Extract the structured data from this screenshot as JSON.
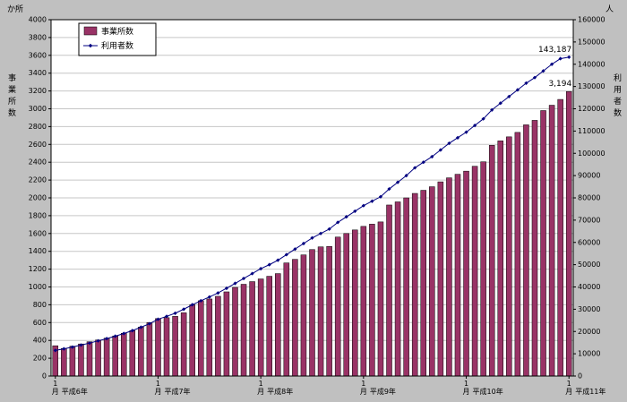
{
  "chart_data": {
    "type": "bar",
    "title": "",
    "left_axis": {
      "unit": "か所",
      "title": "事業所数",
      "min": 0,
      "max": 4000,
      "step": 200
    },
    "right_axis": {
      "unit": "人",
      "title": "利用者数",
      "min": 0,
      "max": 160000,
      "step": 10000
    },
    "x_ticks": [
      {
        "index": 0,
        "month": "1月",
        "year": "平成6年"
      },
      {
        "index": 12,
        "month": "1月",
        "year": "平成7年"
      },
      {
        "index": 24,
        "month": "1月",
        "year": "平成8年"
      },
      {
        "index": 36,
        "month": "1月",
        "year": "平成9年"
      },
      {
        "index": 48,
        "month": "1月",
        "year": "平成10年"
      },
      {
        "index": 60,
        "month": "1月",
        "year": "平成11年"
      }
    ],
    "series": [
      {
        "name": "事業所数",
        "type": "bar",
        "axis": "left",
        "color": "#993366",
        "values": [
          340,
          310,
          335,
          360,
          385,
          405,
          425,
          450,
          480,
          510,
          550,
          600,
          645,
          655,
          670,
          710,
          800,
          845,
          865,
          895,
          945,
          995,
          1030,
          1060,
          1090,
          1120,
          1150,
          1270,
          1310,
          1360,
          1420,
          1450,
          1455,
          1560,
          1600,
          1640,
          1680,
          1705,
          1730,
          1920,
          1955,
          2000,
          2050,
          2085,
          2125,
          2180,
          2225,
          2265,
          2300,
          2355,
          2405,
          2590,
          2640,
          2685,
          2735,
          2820,
          2870,
          2980,
          3040,
          3105,
          3194
        ]
      },
      {
        "name": "利用者数",
        "type": "line",
        "axis": "right",
        "color": "#000080",
        "values": [
          11500,
          12200,
          13000,
          13900,
          14800,
          15800,
          16800,
          17900,
          19100,
          20400,
          21900,
          23500,
          25500,
          26800,
          28200,
          30000,
          32000,
          33800,
          35500,
          37300,
          39400,
          41600,
          43800,
          46000,
          48200,
          50000,
          52000,
          54500,
          57000,
          59500,
          62000,
          64000,
          66000,
          69000,
          71500,
          74000,
          76500,
          78500,
          80500,
          84000,
          87000,
          90000,
          93500,
          96000,
          98500,
          101500,
          104500,
          107000,
          109500,
          112500,
          115500,
          119500,
          122500,
          125500,
          128500,
          131500,
          134000,
          137000,
          140000,
          142500,
          143187
        ]
      }
    ],
    "annotations": [
      {
        "text": "3,194",
        "series": 0,
        "index": 60
      },
      {
        "text": "143,187",
        "series": 1,
        "index": 60
      }
    ],
    "legend": {
      "items": [
        {
          "label": "事業所数",
          "swatch": "bar"
        },
        {
          "label": "利用者数",
          "swatch": "line"
        }
      ],
      "position": "top-left"
    },
    "layout": {
      "bg_color": "#c0c0c0",
      "plot_bg_color": "#ffffff",
      "grid_color": "#c6c6c6",
      "grid": "on"
    }
  }
}
